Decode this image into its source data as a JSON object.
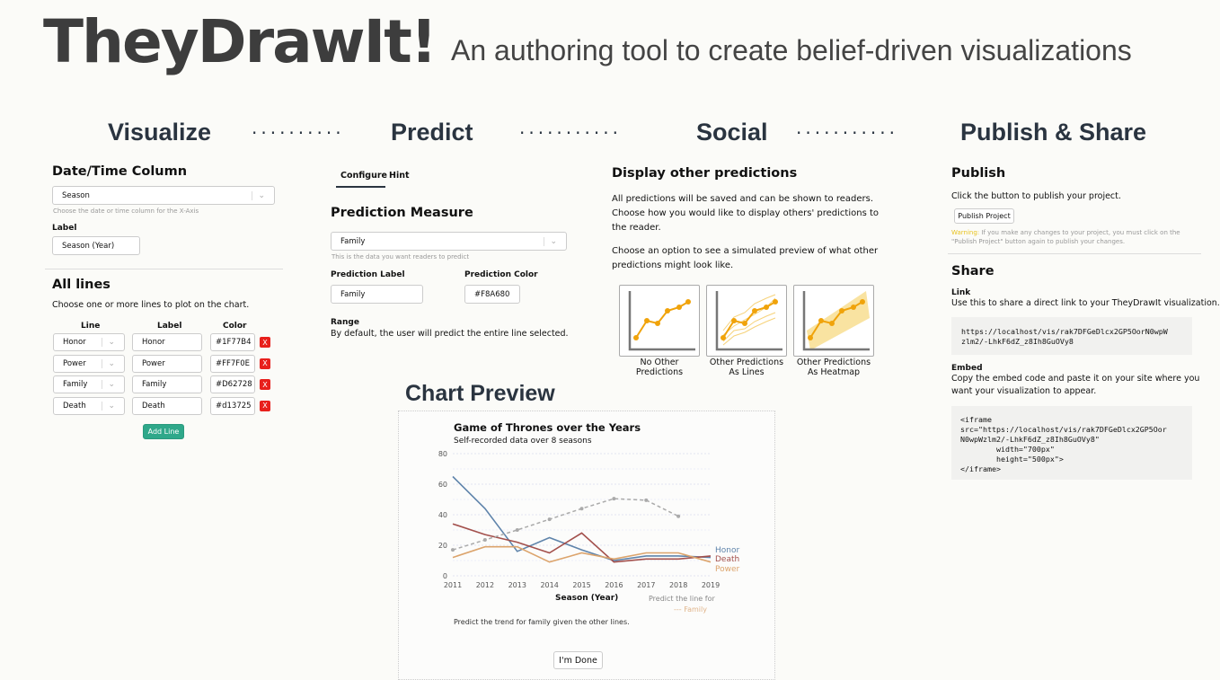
{
  "header": {
    "logo": "TheyDrawIt!",
    "tagline": "An authoring tool to create belief-driven visualizations"
  },
  "steps": [
    "Visualize",
    "Predict",
    "Social",
    "Publish & Share"
  ],
  "visualize": {
    "date_title": "Date/Time Column",
    "date_value": "Season",
    "date_hint": "Choose the date or time column for the X-Axis",
    "label_title": "Label",
    "label_value": "Season (Year)",
    "lines_title": "All lines",
    "lines_desc": "Choose one or more lines to plot on the chart.",
    "columns": [
      "Line",
      "Label",
      "Color"
    ],
    "lines": [
      {
        "line": "Honor",
        "label": "Honor",
        "color": "#1F77B4"
      },
      {
        "line": "Power",
        "label": "Power",
        "color": "#FF7F0E"
      },
      {
        "line": "Family",
        "label": "Family",
        "color": "#D62728"
      },
      {
        "line": "Death",
        "label": "Death",
        "color": "#d13725"
      }
    ],
    "remove_label": "X",
    "add_line": "Add Line"
  },
  "predict": {
    "tabs": [
      "Configure",
      "Hint"
    ],
    "active_tab": "Configure",
    "measure_title": "Prediction Measure",
    "measure_value": "Family",
    "measure_hint": "This is the data you want readers to predict",
    "pred_label_title": "Prediction Label",
    "pred_label_value": "Family",
    "pred_color_title": "Prediction Color",
    "pred_color_value": "#F8A680",
    "range_title": "Range",
    "range_desc": "By default, the user will predict the entire line selected."
  },
  "social": {
    "title": "Display other predictions",
    "desc1": "All predictions will be saved and can be shown to readers. Choose how you would like to display others' predictions to the reader.",
    "desc2": "Choose an option to see a simulated preview of what other predictions might look like.",
    "options": [
      [
        "No Other",
        "Predictions"
      ],
      [
        "Other Predictions",
        "As Lines"
      ],
      [
        "Other Predictions",
        "As Heatmap"
      ]
    ]
  },
  "publish": {
    "title": "Publish",
    "desc": "Click the button to publish your project.",
    "button": "Publish Project",
    "warning_label": "Warning:",
    "warning": "If you make any changes to your project, you must click on the \"Publish Project\" button again to publish your changes.",
    "share_title": "Share",
    "link_title": "Link",
    "link_desc": "Use this to share a direct link to your TheyDrawIt visualization.",
    "link_code": "https://localhost/vis/rak7DFGeDlcx2GP5OorN0wpW\nzlm2/-LhkF6dZ_z8Ih8GuOVy8",
    "embed_title": "Embed",
    "embed_desc": "Copy the embed code and paste it on your site where you want your visualization to appear.",
    "embed_code": "<iframe\nsrc=\"https://localhost/vis/rak7DFGeDlcx2GP5Oor\nN0wpWzlm2/-LhkF6dZ_z8Ih8GuOVy8\"\n        width=\"700px\"\n        height=\"500px\">\n</iframe>"
  },
  "preview": {
    "title": "Chart Preview",
    "caption": "Predict the trend for family given the other lines.",
    "done": "I'm Done",
    "predict_for": "Predict the line for",
    "predict_series": "--- Family"
  },
  "chart_data": {
    "type": "line",
    "title": "Game of Thrones over the Years",
    "subtitle": "Self-recorded data over 8 seasons",
    "xlabel": "Season (Year)",
    "ylabel": "",
    "x": [
      2011,
      2012,
      2013,
      2014,
      2015,
      2016,
      2017,
      2018,
      2019
    ],
    "yticks": [
      0,
      20,
      40,
      60,
      80
    ],
    "ylim": [
      0,
      80
    ],
    "grid": true,
    "series": [
      {
        "name": "Honor",
        "color": "#5f84ab",
        "values": [
          65,
          44,
          16,
          25,
          17,
          10,
          13,
          13,
          12
        ]
      },
      {
        "name": "Death",
        "color": "#a3504c",
        "values": [
          34,
          27,
          22,
          15,
          28,
          9,
          11,
          11,
          13
        ]
      },
      {
        "name": "Power",
        "color": "#dca46c",
        "values": [
          12,
          19,
          19,
          9,
          15,
          11,
          15,
          15,
          9
        ]
      }
    ],
    "prediction": {
      "name": "Family",
      "color": "#aaaaaa",
      "x": [
        2011,
        2012,
        2013,
        2014,
        2015,
        2016,
        2017,
        2018
      ],
      "values": [
        17,
        23.5,
        30,
        37,
        44,
        50.5,
        49.5,
        39
      ]
    }
  }
}
